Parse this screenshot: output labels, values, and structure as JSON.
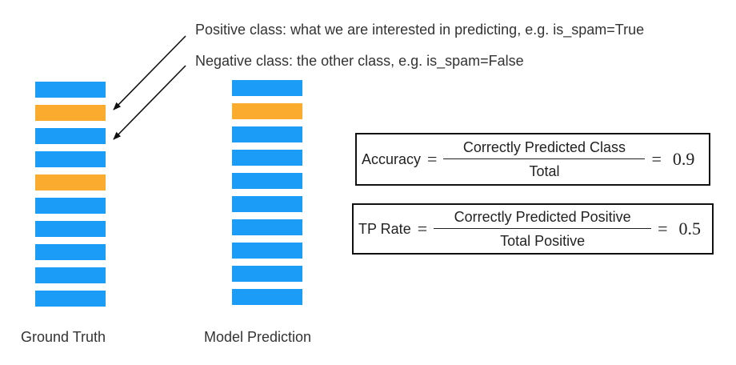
{
  "annotations": {
    "positive": "Positive class: what we are interested in predicting, e.g. is_spam=True",
    "negative": "Negative class: the other class, e.g. is_spam=False"
  },
  "columns": {
    "ground_truth": {
      "label": "Ground Truth",
      "bars": [
        "negative",
        "positive",
        "negative",
        "negative",
        "positive",
        "negative",
        "negative",
        "negative",
        "negative",
        "negative"
      ]
    },
    "model_prediction": {
      "label": "Model Prediction",
      "bars": [
        "negative",
        "positive",
        "negative",
        "negative",
        "negative",
        "negative",
        "negative",
        "negative",
        "negative",
        "negative"
      ]
    }
  },
  "colors": {
    "positive": "#FBAC2E",
    "negative": "#1B9DF7"
  },
  "formulas": {
    "accuracy": {
      "lhs": "Accuracy",
      "numerator": "Correctly Predicted Class",
      "denominator": "Total",
      "value": "0.9"
    },
    "tp_rate": {
      "lhs": "TP Rate",
      "numerator": "Correctly Predicted Positive",
      "denominator": "Total Positive",
      "value": "0.5"
    }
  },
  "symbols": {
    "equals": "="
  }
}
